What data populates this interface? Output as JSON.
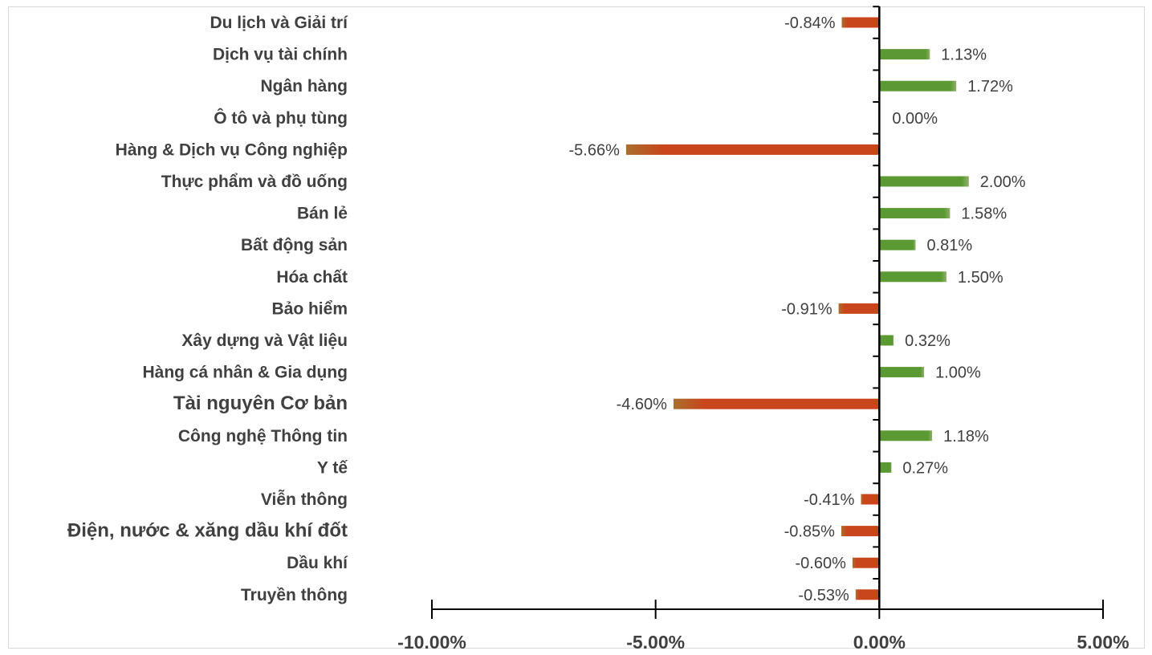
{
  "chart_data": {
    "type": "bar",
    "orientation": "horizontal",
    "categories": [
      "Du lịch và Giải trí",
      "Dịch vụ tài chính",
      "Ngân hàng",
      "Ô tô và phụ tùng",
      "Hàng & Dịch vụ Công nghiệp",
      "Thực phẩm và đồ uống",
      "Bán lẻ",
      "Bất động sản",
      "Hóa chất",
      "Bảo hiểm",
      "Xây dựng và Vật liệu",
      "Hàng cá nhân & Gia dụng",
      "Tài nguyên Cơ bản",
      "Công nghệ Thông tin",
      "Y tế",
      "Viễn thông",
      "Điện, nước & xăng dầu khí đốt",
      "Dầu khí",
      "Truyền thông"
    ],
    "values": [
      -0.84,
      1.13,
      1.72,
      0.0,
      -5.66,
      2.0,
      1.58,
      0.81,
      1.5,
      -0.91,
      0.32,
      1.0,
      -4.6,
      1.18,
      0.27,
      -0.41,
      -0.85,
      -0.6,
      -0.53
    ],
    "data_labels": [
      "-0.84%",
      "1.13%",
      "1.72%",
      "0.00%",
      "-5.66%",
      "2.00%",
      "1.58%",
      "0.81%",
      "1.50%",
      "-0.91%",
      "0.32%",
      "1.00%",
      "-4.60%",
      "1.18%",
      "0.27%",
      "-0.41%",
      "-0.85%",
      "-0.60%",
      "-0.53%"
    ],
    "unit": "%",
    "xlim": [
      -10,
      5
    ],
    "x_ticks": [
      -10,
      -5,
      0,
      5
    ],
    "x_tick_labels": [
      "-10.00%",
      "-5.00%",
      "0.00%",
      "5.00%"
    ],
    "title": "",
    "xlabel": "",
    "ylabel": "",
    "grid": false,
    "legend": false,
    "colors": {
      "positive": "#5b9a32",
      "negative": "#c9451b",
      "axis": "#000000",
      "text": "#404040",
      "frame": "#d9d9d9"
    }
  }
}
